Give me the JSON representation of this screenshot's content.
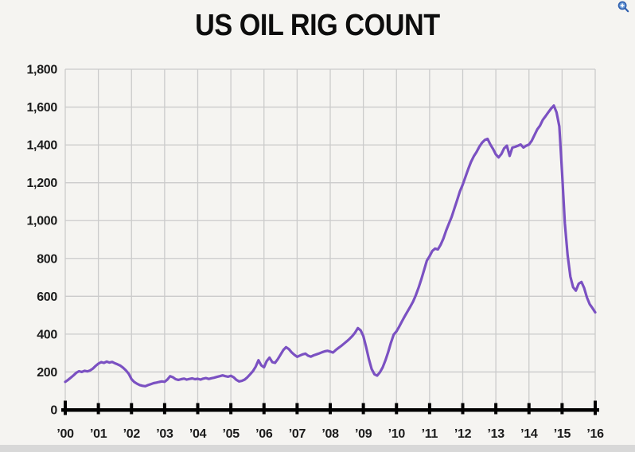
{
  "page": {
    "background_color": "#f5f4f1",
    "bottom_bar_color": "#d8d8d8"
  },
  "icons": {
    "zoom_in": {
      "name": "zoom-in-magnifier",
      "fill": "#6b9bd8",
      "stroke": "#2f5fae",
      "plus_color": "#ffffff"
    }
  },
  "chart_data": {
    "type": "line",
    "title": "US OIL RIG COUNT",
    "xlabel": "",
    "ylabel": "",
    "grid": true,
    "legend": "none",
    "gridline_color": "#cbcbcb",
    "axis_color": "#000000",
    "tick_label_color": "#1b1b1b",
    "y_axis": {
      "min": 0,
      "max": 1800,
      "step": 200,
      "tick_labels": [
        "0",
        "200",
        "400",
        "600",
        "800",
        "1,000",
        "1,200",
        "1,400",
        "1,600",
        "1,800"
      ]
    },
    "x_axis": {
      "min": 2000,
      "max": 2016,
      "step": 1,
      "tick_labels": [
        "’00",
        "’01",
        "’02",
        "’03",
        "’04",
        "’05",
        "’06",
        "’07",
        "’08",
        "’09",
        "’10",
        "’11",
        "’12",
        "’13",
        "’14",
        "’15",
        "’16"
      ]
    },
    "series": [
      {
        "name": "US oil rig count",
        "color": "#7b51c2",
        "start_year": 2000,
        "interval_months": 1,
        "values": [
          148,
          158,
          170,
          182,
          196,
          204,
          200,
          206,
          203,
          208,
          218,
          232,
          244,
          252,
          248,
          255,
          250,
          253,
          246,
          240,
          233,
          222,
          208,
          190,
          162,
          147,
          138,
          131,
          127,
          125,
          131,
          136,
          141,
          144,
          147,
          150,
          148,
          160,
          178,
          172,
          162,
          158,
          162,
          165,
          160,
          163,
          166,
          162,
          164,
          160,
          165,
          168,
          163,
          167,
          170,
          174,
          178,
          182,
          178,
          175,
          180,
          172,
          158,
          150,
          153,
          160,
          172,
          188,
          205,
          228,
          262,
          235,
          225,
          258,
          276,
          252,
          248,
          268,
          292,
          316,
          331,
          321,
          304,
          291,
          280,
          287,
          293,
          297,
          286,
          281,
          288,
          293,
          298,
          304,
          309,
          312,
          308,
          303,
          316,
          327,
          338,
          350,
          362,
          375,
          390,
          408,
          432,
          420,
          390,
          332,
          268,
          216,
          188,
          181,
          198,
          224,
          262,
          305,
          355,
          398,
          415,
          440,
          468,
          495,
          520,
          545,
          572,
          605,
          645,
          690,
          738,
          788,
          812,
          840,
          852,
          848,
          872,
          905,
          948,
          985,
          1020,
          1065,
          1110,
          1155,
          1190,
          1232,
          1272,
          1310,
          1340,
          1362,
          1390,
          1412,
          1426,
          1432,
          1402,
          1378,
          1350,
          1334,
          1352,
          1382,
          1396,
          1342,
          1386,
          1390,
          1396,
          1402,
          1386,
          1396,
          1402,
          1422,
          1452,
          1482,
          1502,
          1532,
          1552,
          1572,
          1592,
          1608,
          1572,
          1498,
          1250,
          988,
          818,
          704,
          648,
          630,
          666,
          676,
          644,
          594,
          558,
          538,
          515
        ]
      }
    ]
  }
}
